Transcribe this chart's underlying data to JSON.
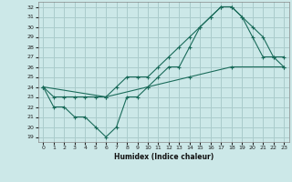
{
  "xlabel": "Humidex (Indice chaleur)",
  "background_color": "#cce8e8",
  "grid_color": "#aacccc",
  "line_color": "#1a6b5a",
  "xlim": [
    -0.5,
    23.5
  ],
  "ylim": [
    18.5,
    32.5
  ],
  "xticks": [
    0,
    1,
    2,
    3,
    4,
    5,
    6,
    7,
    8,
    9,
    10,
    11,
    12,
    13,
    14,
    15,
    16,
    17,
    18,
    19,
    20,
    21,
    22,
    23
  ],
  "yticks": [
    19,
    20,
    21,
    22,
    23,
    24,
    25,
    26,
    27,
    28,
    29,
    30,
    31,
    32
  ],
  "line1_x": [
    0,
    1,
    2,
    3,
    4,
    5,
    6,
    7,
    8,
    9,
    10,
    11,
    12,
    13,
    14,
    15,
    16,
    17,
    18,
    19,
    20,
    21,
    22,
    23
  ],
  "line1_y": [
    24,
    22,
    22,
    21,
    21,
    20,
    19,
    20,
    23,
    23,
    24,
    25,
    26,
    26,
    28,
    30,
    31,
    32,
    32,
    31,
    29,
    27,
    27,
    27
  ],
  "line2_x": [
    0,
    1,
    2,
    3,
    4,
    5,
    6,
    7,
    8,
    9,
    10,
    11,
    12,
    13,
    14,
    15,
    16,
    17,
    18,
    19,
    20,
    21,
    22,
    23
  ],
  "line2_y": [
    24,
    23,
    23,
    23,
    23,
    23,
    23,
    24,
    25,
    25,
    25,
    26,
    27,
    28,
    29,
    30,
    31,
    32,
    32,
    31,
    30,
    29,
    27,
    26
  ],
  "line3_x": [
    0,
    6,
    10,
    14,
    18,
    23
  ],
  "line3_y": [
    24,
    23,
    24,
    25,
    26,
    26
  ]
}
